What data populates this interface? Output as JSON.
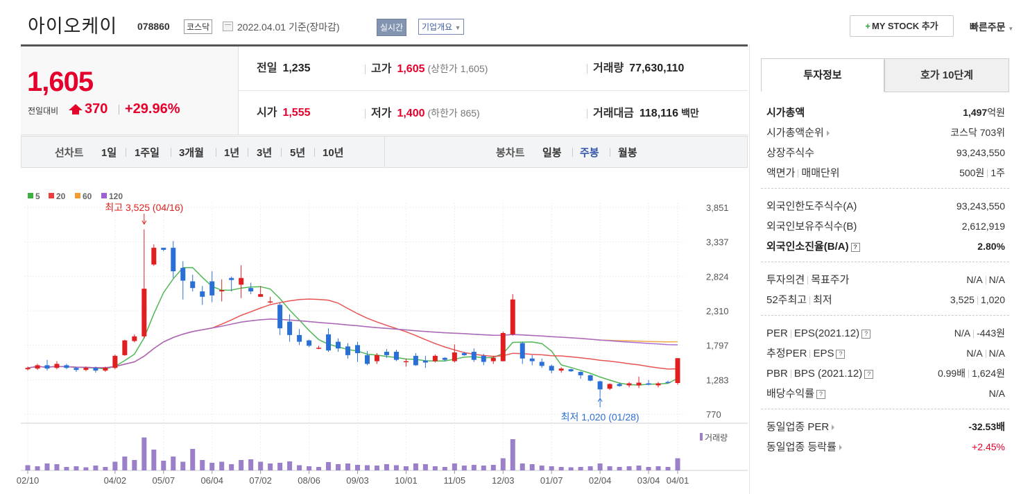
{
  "header": {
    "name": "아이오케이",
    "code": "078860",
    "market": "코스닥",
    "date": "2022.04.01 기준(장마감)",
    "realtime": "실시간",
    "company_info": "기업개요",
    "mystock": "MY STOCK 추가",
    "quick_order": "빠른주문"
  },
  "price": {
    "current": "1,605",
    "diff_label": "전일대비",
    "diff": "370",
    "rate": "+29.96%",
    "prev_label": "전일",
    "prev": "1,235",
    "high_label": "고가",
    "high": "1,605",
    "upper_limit": "(상한가 1,605)",
    "volume_label": "거래량",
    "volume": "77,630,110",
    "open_label": "시가",
    "open": "1,555",
    "low_label": "저가",
    "low": "1,400",
    "lower_limit": "(하한가 865)",
    "amount_label": "거래대금",
    "amount": "118,116",
    "amount_unit": "백만"
  },
  "period_bar": {
    "line_label": "선차트",
    "line_items": [
      "1일",
      "1주일",
      "3개월",
      "1년",
      "3년",
      "5년",
      "10년"
    ],
    "candle_label": "봉차트",
    "candle_items": [
      "일봉",
      "주봉",
      "월봉"
    ],
    "active_candle": "주봉"
  },
  "chart_data": {
    "type": "candlestick",
    "legend": [
      {
        "name": "5",
        "color": "#3cb043"
      },
      {
        "name": "20",
        "color": "#e84040"
      },
      {
        "name": "60",
        "color": "#f0a030"
      },
      {
        "name": "120",
        "color": "#a060d0"
      }
    ],
    "y_ticks": [
      "3,851",
      "3,337",
      "2,824",
      "2,310",
      "1,797",
      "1,283",
      "770"
    ],
    "x_ticks": [
      "02/10",
      "04/02",
      "05/07",
      "06/04",
      "07/02",
      "08/06",
      "09/03",
      "10/01",
      "11/05",
      "12/03",
      "01/07",
      "02/04",
      "03/04",
      "04/01"
    ],
    "high_annotation": "최고 3,525 (04/16)",
    "low_annotation": "최저 1,020 (01/28)",
    "volume_label": "거래량",
    "ylim": [
      770,
      3851
    ],
    "candles": [
      [
        1440,
        1460,
        1420,
        1480,
        15
      ],
      [
        1450,
        1500,
        1430,
        1520,
        12
      ],
      [
        1500,
        1450,
        1420,
        1580,
        20
      ],
      [
        1460,
        1520,
        1440,
        1560,
        18
      ],
      [
        1500,
        1460,
        1440,
        1520,
        10
      ],
      [
        1460,
        1430,
        1400,
        1470,
        12
      ],
      [
        1430,
        1460,
        1410,
        1480,
        9
      ],
      [
        1460,
        1420,
        1390,
        1480,
        14
      ],
      [
        1420,
        1460,
        1400,
        1480,
        10
      ],
      [
        1460,
        1640,
        1440,
        1660,
        25
      ],
      [
        1650,
        1870,
        1640,
        1880,
        40
      ],
      [
        1860,
        1930,
        1840,
        1960,
        30
      ],
      [
        1930,
        2640,
        1900,
        3525,
        95
      ],
      [
        3000,
        3250,
        2980,
        3300,
        60
      ],
      [
        3250,
        3220,
        3200,
        3240,
        28
      ],
      [
        3250,
        2900,
        2800,
        3350,
        40
      ],
      [
        2950,
        2760,
        2480,
        3050,
        25
      ],
      [
        2750,
        2650,
        2600,
        2850,
        62
      ],
      [
        2600,
        2520,
        2400,
        2680,
        30
      ],
      [
        2750,
        2540,
        2440,
        2900,
        22
      ],
      [
        2600,
        2620,
        2450,
        2780,
        25
      ],
      [
        2800,
        2770,
        2600,
        2820,
        18
      ],
      [
        2700,
        2800,
        2500,
        2990,
        30
      ],
      [
        2650,
        2600,
        2560,
        2730,
        32
      ],
      [
        2520,
        2560,
        2520,
        2680,
        25
      ],
      [
        2450,
        2450,
        2420,
        2520,
        20
      ],
      [
        2400,
        2050,
        1950,
        2440,
        22
      ],
      [
        2150,
        1950,
        1850,
        2260,
        26
      ],
      [
        1950,
        1850,
        1800,
        2040,
        15
      ],
      [
        1870,
        1790,
        1770,
        1880,
        12
      ],
      [
        1760,
        1760,
        1740,
        1790,
        10
      ],
      [
        1960,
        1720,
        1700,
        2050,
        24
      ],
      [
        1850,
        1750,
        1700,
        1900,
        18
      ],
      [
        1780,
        1650,
        1600,
        1830,
        20
      ],
      [
        1800,
        1680,
        1550,
        1850,
        16
      ],
      [
        1650,
        1520,
        1500,
        1710,
        15
      ],
      [
        1560,
        1650,
        1520,
        1680,
        14
      ],
      [
        1700,
        1650,
        1610,
        1740,
        18
      ],
      [
        1700,
        1580,
        1560,
        1730,
        15
      ],
      [
        1550,
        1560,
        1480,
        1600,
        12
      ],
      [
        1640,
        1500,
        1490,
        1680,
        20
      ],
      [
        1570,
        1540,
        1460,
        1640,
        18
      ],
      [
        1560,
        1640,
        1540,
        1660,
        12
      ],
      [
        1610,
        1580,
        1560,
        1620,
        10
      ],
      [
        1560,
        1690,
        1540,
        1810,
        20
      ],
      [
        1680,
        1650,
        1640,
        1700,
        14
      ],
      [
        1700,
        1580,
        1550,
        1750,
        16
      ],
      [
        1640,
        1550,
        1500,
        1670,
        14
      ],
      [
        1560,
        1610,
        1520,
        1640,
        16
      ],
      [
        1560,
        1980,
        1560,
        2000,
        35
      ],
      [
        1960,
        2480,
        1940,
        2560,
        90
      ],
      [
        1830,
        1600,
        1520,
        1850,
        20
      ],
      [
        1600,
        1560,
        1500,
        1650,
        18
      ],
      [
        1550,
        1490,
        1460,
        1600,
        14
      ],
      [
        1490,
        1420,
        1380,
        1510,
        12
      ],
      [
        1420,
        1450,
        1390,
        1470,
        10
      ],
      [
        1440,
        1410,
        1400,
        1450,
        9
      ],
      [
        1400,
        1350,
        1300,
        1410,
        10
      ],
      [
        1350,
        1270,
        1260,
        1360,
        12
      ],
      [
        1260,
        1140,
        1020,
        1270,
        20
      ],
      [
        1150,
        1220,
        1130,
        1230,
        12
      ],
      [
        1220,
        1190,
        1180,
        1240,
        10
      ],
      [
        1200,
        1230,
        1170,
        1250,
        12
      ],
      [
        1200,
        1240,
        1160,
        1330,
        14
      ],
      [
        1230,
        1210,
        1200,
        1280,
        10
      ],
      [
        1200,
        1230,
        1170,
        1250,
        12
      ],
      [
        1250,
        1240,
        1230,
        1270,
        10
      ],
      [
        1235,
        1605,
        1210,
        1605,
        35
      ]
    ]
  },
  "right_panel": {
    "tab1": "투자정보",
    "tab2": "호가 10단계",
    "market_cap_label": "시가총액",
    "market_cap": "1,497",
    "market_cap_unit": "억원",
    "cap_rank_label": "시가총액순위",
    "cap_rank": "코스닥 703위",
    "shares_label": "상장주식수",
    "shares": "93,243,550",
    "par_label_a": "액면가",
    "par_label_b": "매매단위",
    "par_a": "500원",
    "par_b": "1주",
    "foreign_limit_label": "외국인한도주식수(A)",
    "foreign_limit": "93,243,550",
    "foreign_hold_label": "외국인보유주식수(B)",
    "foreign_hold": "2,612,919",
    "foreign_ratio_label": "외국인소진율(B/A)",
    "foreign_ratio": "2.80%",
    "opinion_label_a": "투자의견",
    "opinion_label_b": "목표주가",
    "opinion_a": "N/A",
    "opinion_b": "N/A",
    "w52_label_a": "52주최고",
    "w52_label_b": "최저",
    "w52_high": "3,525",
    "w52_low": "1,020",
    "per_label_a": "PER",
    "per_label_b": "EPS(2021.12)",
    "per": "N/A",
    "eps": "-443원",
    "eper_label_a": "추정PER",
    "eper_label_b": "EPS",
    "eper": "N/A",
    "eeps": "N/A",
    "pbr_label_a": "PBR",
    "pbr_label_b": "BPS (2021.12)",
    "pbr": "0.99배",
    "bps": "1,624원",
    "div_label": "배당수익률",
    "div": "N/A",
    "ind_per_label": "동일업종 PER",
    "ind_per": "-32.53배",
    "ind_rate_label": "동일업종 등락률",
    "ind_rate": "+2.45%"
  }
}
